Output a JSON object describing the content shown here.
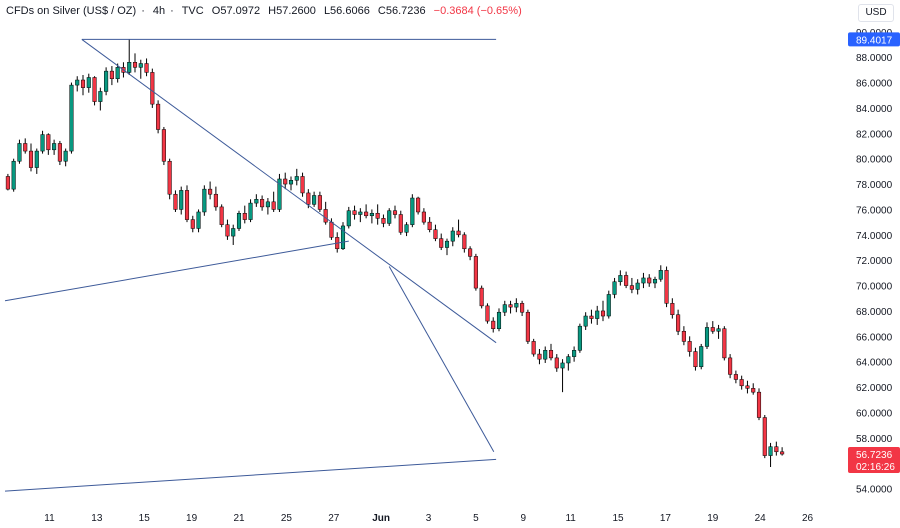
{
  "header": {
    "symbol": "CFDs on Silver (US$ / OZ)",
    "interval": "4h",
    "source": "TVC",
    "open": "O57.0972",
    "high": "H57.2600",
    "low": "L56.6066",
    "close": "C56.7236",
    "change": "−0.3684 (−0.65%)"
  },
  "currency_button": "USD",
  "chart_data": {
    "type": "candlestick",
    "title": "CFDs on Silver (US$ / OZ) · 4h · TVC",
    "y_ticks": [
      "90.0000",
      "88.0000",
      "86.0000",
      "84.0000",
      "82.0000",
      "80.0000",
      "78.0000",
      "76.0000",
      "74.0000",
      "72.0000",
      "70.0000",
      "68.0000",
      "66.0000",
      "64.0000",
      "62.0000",
      "60.0000",
      "58.0000",
      "56.0000",
      "54.0000"
    ],
    "ylim": [
      53.1,
      90.3
    ],
    "x_ticks": [
      "11",
      "13",
      "15",
      "19",
      "21",
      "25",
      "27",
      "Jun",
      "3",
      "5",
      "9",
      "11",
      "15",
      "17",
      "19",
      "24",
      "26"
    ],
    "price_labels": {
      "level": {
        "value": 89.4017,
        "text": "89.4017"
      },
      "last": {
        "value": 56.7236,
        "text": "56.7236",
        "countdown": "02:16:26"
      }
    },
    "colors": {
      "up": "#089981",
      "down": "#f23645",
      "line": "#3d5a99",
      "level_bg": "#2962ff",
      "last_bg": "#f23645",
      "grid": "#ffffff"
    },
    "grid": false,
    "trendlines": [
      {
        "from": [
          13.3,
          89.4
        ],
        "to": [
          85.0,
          89.4
        ]
      },
      {
        "from": [
          13.3,
          89.4
        ],
        "to": [
          85.0,
          65.5
        ]
      },
      {
        "from": [
          0,
          68.8
        ],
        "to": [
          59.5,
          73.5
        ]
      },
      {
        "from": [
          0,
          53.8
        ],
        "to": [
          85.0,
          56.3
        ]
      },
      {
        "from": [
          66.5,
          71.5
        ],
        "to": [
          84.6,
          56.9
        ]
      }
    ],
    "ohlc": [
      [
        78.6,
        78.8,
        77.5,
        77.6
      ],
      [
        77.6,
        80.0,
        77.4,
        79.8
      ],
      [
        79.8,
        81.5,
        79.6,
        81.2
      ],
      [
        81.2,
        81.6,
        80.4,
        80.6
      ],
      [
        80.6,
        81.2,
        79.0,
        79.3
      ],
      [
        79.3,
        80.8,
        78.8,
        80.6
      ],
      [
        80.6,
        82.2,
        80.4,
        81.9
      ],
      [
        81.9,
        82.0,
        80.3,
        80.7
      ],
      [
        80.7,
        81.5,
        80.3,
        81.2
      ],
      [
        81.2,
        81.4,
        79.5,
        79.8
      ],
      [
        79.8,
        80.8,
        79.4,
        80.6
      ],
      [
        80.6,
        86.0,
        80.4,
        85.8
      ],
      [
        85.8,
        86.5,
        85.3,
        86.2
      ],
      [
        86.2,
        86.6,
        85.0,
        85.6
      ],
      [
        85.6,
        86.7,
        85.2,
        86.4
      ],
      [
        86.4,
        86.5,
        84.2,
        84.5
      ],
      [
        84.5,
        85.6,
        83.8,
        85.3
      ],
      [
        85.3,
        87.2,
        85.0,
        86.9
      ],
      [
        86.9,
        87.3,
        85.8,
        86.3
      ],
      [
        86.3,
        87.5,
        86.0,
        87.2
      ],
      [
        87.2,
        87.6,
        86.4,
        86.8
      ],
      [
        86.8,
        89.4,
        86.6,
        87.6
      ],
      [
        87.6,
        88.3,
        86.8,
        87.2
      ],
      [
        87.2,
        87.8,
        86.3,
        87.5
      ],
      [
        87.5,
        87.9,
        86.5,
        86.8
      ],
      [
        86.8,
        87.1,
        84.0,
        84.3
      ],
      [
        84.3,
        84.6,
        82.0,
        82.3
      ],
      [
        82.3,
        82.5,
        79.5,
        79.8
      ],
      [
        79.8,
        80.0,
        76.8,
        77.2
      ],
      [
        77.2,
        77.5,
        75.8,
        76.0
      ],
      [
        76.0,
        77.8,
        75.6,
        77.5
      ],
      [
        77.5,
        77.9,
        75.0,
        75.2
      ],
      [
        75.2,
        75.5,
        74.2,
        74.5
      ],
      [
        74.5,
        76.0,
        74.2,
        75.8
      ],
      [
        75.8,
        77.9,
        75.5,
        77.6
      ],
      [
        77.6,
        78.2,
        76.8,
        77.2
      ],
      [
        77.2,
        77.8,
        75.9,
        76.2
      ],
      [
        76.2,
        76.4,
        74.6,
        74.8
      ],
      [
        74.8,
        75.2,
        73.6,
        73.9
      ],
      [
        73.9,
        74.8,
        73.2,
        74.5
      ],
      [
        74.5,
        75.9,
        74.3,
        75.7
      ],
      [
        75.7,
        76.3,
        74.9,
        75.2
      ],
      [
        75.2,
        76.8,
        75.0,
        76.5
      ],
      [
        76.5,
        77.2,
        76.2,
        76.8
      ],
      [
        76.8,
        77.1,
        75.9,
        76.2
      ],
      [
        76.2,
        76.9,
        75.6,
        76.6
      ],
      [
        76.6,
        77.4,
        75.8,
        76.0
      ],
      [
        76.0,
        78.8,
        75.8,
        78.4
      ],
      [
        78.4,
        78.9,
        77.6,
        78.0
      ],
      [
        78.0,
        78.6,
        77.5,
        78.3
      ],
      [
        78.3,
        79.2,
        77.9,
        78.6
      ],
      [
        78.6,
        78.9,
        77.0,
        77.3
      ],
      [
        77.3,
        77.6,
        76.1,
        76.4
      ],
      [
        76.4,
        77.4,
        76.2,
        77.1
      ],
      [
        77.1,
        77.4,
        75.8,
        76.0
      ],
      [
        76.0,
        76.6,
        74.8,
        75.0
      ],
      [
        75.0,
        75.3,
        73.6,
        73.8
      ],
      [
        73.8,
        74.2,
        72.6,
        72.9
      ],
      [
        72.9,
        75.0,
        72.8,
        74.7
      ],
      [
        74.7,
        76.2,
        74.5,
        75.9
      ],
      [
        75.9,
        76.3,
        75.2,
        75.6
      ],
      [
        75.6,
        76.1,
        75.0,
        75.8
      ],
      [
        75.8,
        76.4,
        75.3,
        75.5
      ],
      [
        75.5,
        76.0,
        74.9,
        75.7
      ],
      [
        75.7,
        76.4,
        74.8,
        75.3
      ],
      [
        75.3,
        75.6,
        74.6,
        74.9
      ],
      [
        74.9,
        76.1,
        74.7,
        75.9
      ],
      [
        75.9,
        76.3,
        75.3,
        75.6
      ],
      [
        75.6,
        75.9,
        74.0,
        74.2
      ],
      [
        74.2,
        75.0,
        73.9,
        74.8
      ],
      [
        74.8,
        77.2,
        74.6,
        76.9
      ],
      [
        76.9,
        77.0,
        75.6,
        75.8
      ],
      [
        75.8,
        76.1,
        74.8,
        75.0
      ],
      [
        75.0,
        75.4,
        74.2,
        74.4
      ],
      [
        74.4,
        74.8,
        73.5,
        73.7
      ],
      [
        73.7,
        74.1,
        72.8,
        73.0
      ],
      [
        73.0,
        73.7,
        72.4,
        73.5
      ],
      [
        73.5,
        74.6,
        73.1,
        74.3
      ],
      [
        74.3,
        75.2,
        73.8,
        74.0
      ],
      [
        74.0,
        74.2,
        72.6,
        72.9
      ],
      [
        72.9,
        73.1,
        72.0,
        72.3
      ],
      [
        72.3,
        72.5,
        69.6,
        69.8
      ],
      [
        69.8,
        70.0,
        68.2,
        68.4
      ],
      [
        68.4,
        68.6,
        67.0,
        67.2
      ],
      [
        67.2,
        67.5,
        66.3,
        66.6
      ],
      [
        66.6,
        68.2,
        66.4,
        67.9
      ],
      [
        67.9,
        68.8,
        67.6,
        68.5
      ],
      [
        68.5,
        68.8,
        67.8,
        68.3
      ],
      [
        68.3,
        69.0,
        67.9,
        68.6
      ],
      [
        68.6,
        68.8,
        67.6,
        67.9
      ],
      [
        67.9,
        68.1,
        65.4,
        65.6
      ],
      [
        65.6,
        65.8,
        64.4,
        64.6
      ],
      [
        64.6,
        65.0,
        63.8,
        64.2
      ],
      [
        64.2,
        65.2,
        63.9,
        64.9
      ],
      [
        64.9,
        65.4,
        64.1,
        64.3
      ],
      [
        64.3,
        64.6,
        63.2,
        63.5
      ],
      [
        63.5,
        64.2,
        61.6,
        63.9
      ],
      [
        63.9,
        64.6,
        63.3,
        64.4
      ],
      [
        64.4,
        65.2,
        64.0,
        64.9
      ],
      [
        64.9,
        67.0,
        64.7,
        66.8
      ],
      [
        66.8,
        67.9,
        66.5,
        67.6
      ],
      [
        67.6,
        68.1,
        67.0,
        67.4
      ],
      [
        67.4,
        68.4,
        66.9,
        68.0
      ],
      [
        68.0,
        68.8,
        67.2,
        67.6
      ],
      [
        67.6,
        69.6,
        67.4,
        69.3
      ],
      [
        69.3,
        70.6,
        69.0,
        70.3
      ],
      [
        70.3,
        71.2,
        70.0,
        70.8
      ],
      [
        70.8,
        71.1,
        69.8,
        70.0
      ],
      [
        70.0,
        70.6,
        69.4,
        69.7
      ],
      [
        69.7,
        70.5,
        69.3,
        70.2
      ],
      [
        70.2,
        71.0,
        69.8,
        70.6
      ],
      [
        70.6,
        70.9,
        69.9,
        70.2
      ],
      [
        70.2,
        70.7,
        69.8,
        70.5
      ],
      [
        70.5,
        71.6,
        70.3,
        71.2
      ],
      [
        71.2,
        71.5,
        68.3,
        68.6
      ],
      [
        68.6,
        69.0,
        67.4,
        67.7
      ],
      [
        67.7,
        68.1,
        66.1,
        66.4
      ],
      [
        66.4,
        66.8,
        65.3,
        65.6
      ],
      [
        65.6,
        66.0,
        64.4,
        64.8
      ],
      [
        64.8,
        65.1,
        63.3,
        63.6
      ],
      [
        63.6,
        65.4,
        63.4,
        65.2
      ],
      [
        65.2,
        67.1,
        65.0,
        66.7
      ],
      [
        66.7,
        67.2,
        66.2,
        66.4
      ],
      [
        66.4,
        66.9,
        65.8,
        66.6
      ],
      [
        66.6,
        66.8,
        64.1,
        64.3
      ],
      [
        64.3,
        64.6,
        62.7,
        63.0
      ],
      [
        63.0,
        63.3,
        62.3,
        62.6
      ],
      [
        62.6,
        62.9,
        61.8,
        62.1
      ],
      [
        62.1,
        62.5,
        61.5,
        61.9
      ],
      [
        61.9,
        62.3,
        61.4,
        61.6
      ],
      [
        61.6,
        61.9,
        59.4,
        59.6
      ],
      [
        59.6,
        59.8,
        56.4,
        56.6
      ],
      [
        56.6,
        57.6,
        55.7,
        57.3
      ],
      [
        57.3,
        57.7,
        56.6,
        56.9
      ],
      [
        56.9,
        57.26,
        56.6,
        56.72
      ]
    ]
  }
}
